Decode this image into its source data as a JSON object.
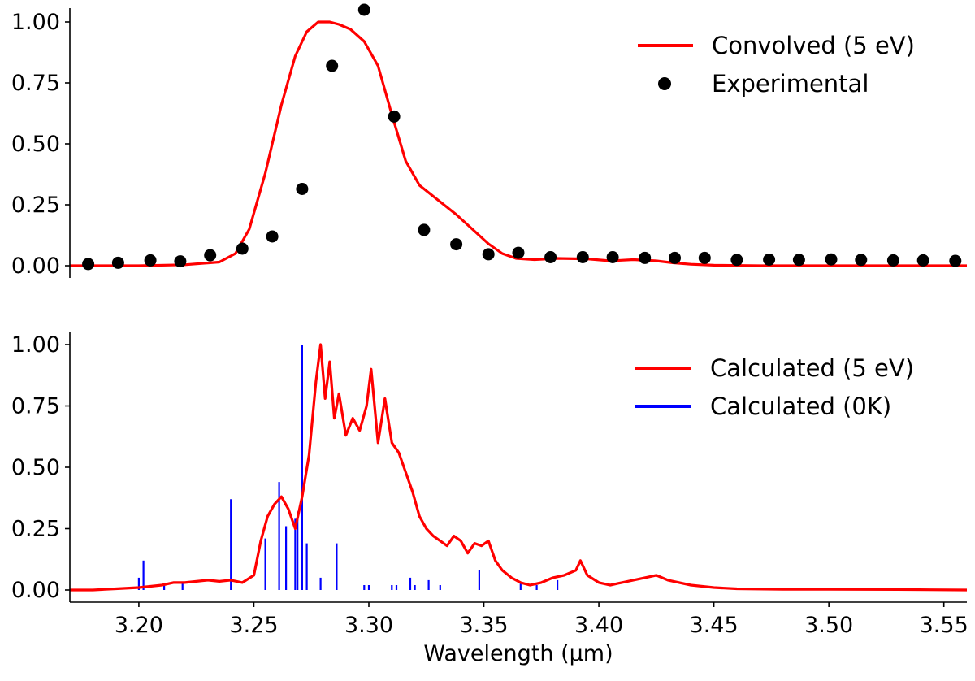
{
  "chart_data": [
    {
      "panel": "top",
      "type": "line",
      "xlim": [
        3.17,
        3.56
      ],
      "ylim": [
        0.0,
        1.0
      ],
      "yticks": [
        "0.00",
        "0.25",
        "0.50",
        "0.75",
        "1.00"
      ],
      "legend_position": "top-right",
      "series": [
        {
          "name": "Convolved (5 eV)",
          "kind": "line",
          "color": "#ff0000",
          "x": [
            3.17,
            3.2,
            3.22,
            3.235,
            3.242,
            3.248,
            3.255,
            3.262,
            3.268,
            3.273,
            3.278,
            3.283,
            3.287,
            3.292,
            3.298,
            3.304,
            3.31,
            3.316,
            3.322,
            3.33,
            3.338,
            3.345,
            3.352,
            3.358,
            3.364,
            3.372,
            3.382,
            3.395,
            3.405,
            3.415,
            3.425,
            3.432,
            3.44,
            3.45,
            3.47,
            3.5,
            3.56
          ],
          "y": [
            0.0,
            0.0,
            0.004,
            0.015,
            0.05,
            0.15,
            0.38,
            0.66,
            0.86,
            0.96,
            1.0,
            1.0,
            0.99,
            0.97,
            0.92,
            0.82,
            0.62,
            0.43,
            0.33,
            0.27,
            0.21,
            0.15,
            0.09,
            0.05,
            0.03,
            0.025,
            0.03,
            0.028,
            0.02,
            0.025,
            0.02,
            0.012,
            0.006,
            0.002,
            0.0,
            0.0,
            0.0
          ]
        },
        {
          "name": "Experimental",
          "kind": "scatter",
          "color": "#000000",
          "x": [
            3.178,
            3.191,
            3.205,
            3.218,
            3.231,
            3.245,
            3.258,
            3.271,
            3.284,
            3.298,
            3.311,
            3.324,
            3.338,
            3.352,
            3.365,
            3.379,
            3.393,
            3.406,
            3.42,
            3.433,
            3.446,
            3.46,
            3.474,
            3.487,
            3.501,
            3.514,
            3.528,
            3.541,
            3.555
          ],
          "y": [
            0.007,
            0.012,
            0.022,
            0.018,
            0.043,
            0.07,
            0.12,
            0.315,
            0.82,
            1.05,
            0.612,
            0.147,
            0.088,
            0.047,
            0.053,
            0.035,
            0.035,
            0.035,
            0.032,
            0.032,
            0.032,
            0.024,
            0.025,
            0.024,
            0.026,
            0.024,
            0.022,
            0.022,
            0.02
          ]
        }
      ]
    },
    {
      "panel": "bottom",
      "type": "line",
      "xlabel": "Wavelength (μm)",
      "xlim": [
        3.17,
        3.56
      ],
      "ylim": [
        0.0,
        1.0
      ],
      "xticks": [
        "3.20",
        "3.25",
        "3.30",
        "3.35",
        "3.40",
        "3.45",
        "3.50",
        "3.55"
      ],
      "yticks": [
        "0.00",
        "0.25",
        "0.50",
        "0.75",
        "1.00"
      ],
      "legend_position": "top-right",
      "series": [
        {
          "name": "Calculated (5 eV)",
          "kind": "line",
          "color": "#ff0000",
          "x": [
            3.17,
            3.18,
            3.19,
            3.2,
            3.205,
            3.21,
            3.215,
            3.22,
            3.225,
            3.23,
            3.235,
            3.24,
            3.245,
            3.25,
            3.253,
            3.256,
            3.259,
            3.262,
            3.265,
            3.268,
            3.271,
            3.274,
            3.277,
            3.279,
            3.281,
            3.283,
            3.285,
            3.287,
            3.29,
            3.293,
            3.296,
            3.299,
            3.301,
            3.304,
            3.307,
            3.31,
            3.313,
            3.316,
            3.319,
            3.322,
            3.325,
            3.328,
            3.331,
            3.334,
            3.337,
            3.34,
            3.343,
            3.346,
            3.349,
            3.352,
            3.355,
            3.358,
            3.362,
            3.366,
            3.37,
            3.375,
            3.38,
            3.385,
            3.39,
            3.392,
            3.395,
            3.4,
            3.405,
            3.41,
            3.415,
            3.42,
            3.425,
            3.43,
            3.44,
            3.45,
            3.46,
            3.48,
            3.5,
            3.53,
            3.56
          ],
          "y": [
            0.0,
            0.0,
            0.005,
            0.01,
            0.015,
            0.02,
            0.03,
            0.03,
            0.035,
            0.04,
            0.035,
            0.04,
            0.03,
            0.06,
            0.2,
            0.3,
            0.35,
            0.38,
            0.33,
            0.25,
            0.38,
            0.55,
            0.85,
            1.0,
            0.78,
            0.93,
            0.7,
            0.8,
            0.63,
            0.7,
            0.65,
            0.75,
            0.9,
            0.6,
            0.78,
            0.6,
            0.56,
            0.48,
            0.4,
            0.3,
            0.25,
            0.22,
            0.2,
            0.18,
            0.22,
            0.2,
            0.15,
            0.19,
            0.18,
            0.2,
            0.12,
            0.08,
            0.05,
            0.03,
            0.02,
            0.03,
            0.05,
            0.06,
            0.08,
            0.12,
            0.06,
            0.03,
            0.02,
            0.03,
            0.04,
            0.05,
            0.06,
            0.04,
            0.02,
            0.01,
            0.005,
            0.003,
            0.003,
            0.002,
            0.0
          ]
        },
        {
          "name": "Calculated (0K)",
          "kind": "stick",
          "color": "#0000ff",
          "x": [
            3.2,
            3.202,
            3.211,
            3.219,
            3.24,
            3.255,
            3.261,
            3.264,
            3.268,
            3.269,
            3.271,
            3.273,
            3.279,
            3.286,
            3.298,
            3.3,
            3.31,
            3.312,
            3.318,
            3.32,
            3.326,
            3.331,
            3.348,
            3.366,
            3.373,
            3.382
          ],
          "y": [
            0.05,
            0.12,
            0.02,
            0.03,
            0.37,
            0.21,
            0.44,
            0.26,
            0.29,
            0.32,
            1.0,
            0.19,
            0.05,
            0.19,
            0.02,
            0.02,
            0.02,
            0.02,
            0.05,
            0.02,
            0.04,
            0.02,
            0.08,
            0.03,
            0.02,
            0.04
          ]
        }
      ]
    }
  ]
}
